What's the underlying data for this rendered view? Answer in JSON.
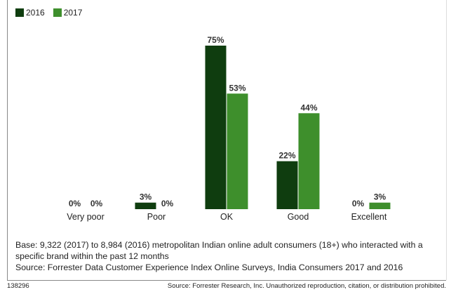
{
  "chart_data": {
    "type": "bar",
    "categories": [
      "Very poor",
      "Poor",
      "OK",
      "Good",
      "Excellent"
    ],
    "series": [
      {
        "name": "2016",
        "values": [
          0,
          3,
          75,
          22,
          0
        ],
        "labels": [
          "0%",
          "3%",
          "75%",
          "22%",
          "0%"
        ]
      },
      {
        "name": "2017",
        "values": [
          0,
          0,
          53,
          44,
          3
        ],
        "labels": [
          "0%",
          "0%",
          "53%",
          "44%",
          "3%"
        ]
      }
    ],
    "ylim": [
      0,
      75
    ],
    "grid": false,
    "legend_position": "top-left"
  },
  "colors": {
    "series_2016": "#0f3d0f",
    "series_2017": "#3e8f2c"
  },
  "notes": {
    "base": "Base: 9,322 (2017) to 8,984 (2016) metropolitan Indian online adult consumers (18+) who interacted with a specific brand within the past 12 months",
    "source": "Source: Forrester Data Customer Experience Index Online Surveys, India Consumers 2017 and 2016"
  },
  "footer": {
    "id": "138296",
    "credit": "Source: Forrester Research, Inc. Unauthorized reproduction, citation, or distribution prohibited."
  }
}
